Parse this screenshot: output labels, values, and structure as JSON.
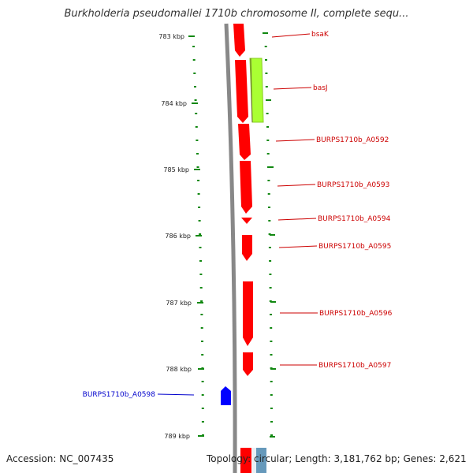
{
  "title": "Burkholderia pseudomallei 1710b chromosome II, complete sequ...",
  "footer": {
    "accession": "Accession: NC_007435",
    "summary": "Topology: circular; Length: 3,181,762 bp; Genes: 2,621"
  },
  "axis": {
    "tick_labels": [
      "783 kbp",
      "784 kbp",
      "785 kbp",
      "786 kbp",
      "787 kbp",
      "788 kbp",
      "789 kbp"
    ]
  },
  "colors": {
    "forward_gene": "#ff0000",
    "highlight_gene": "#aaff33",
    "reverse_gene": "#0000ff",
    "tick_green": "#118811",
    "backbone": "#888888"
  },
  "genes": [
    {
      "label": "bsaK",
      "color": "#cc0000"
    },
    {
      "label": "basJ",
      "color": "#cc0000"
    },
    {
      "label": "BURPS1710b_A0592",
      "color": "#cc0000"
    },
    {
      "label": "BURPS1710b_A0593",
      "color": "#cc0000"
    },
    {
      "label": "BURPS1710b_A0594",
      "color": "#cc0000"
    },
    {
      "label": "BURPS1710b_A0595",
      "color": "#cc0000"
    },
    {
      "label": "BURPS1710b_A0596",
      "color": "#cc0000"
    },
    {
      "label": "BURPS1710b_A0597",
      "color": "#cc0000"
    },
    {
      "label": "BURPS1710b_A0598",
      "color": "#0000cc"
    }
  ]
}
